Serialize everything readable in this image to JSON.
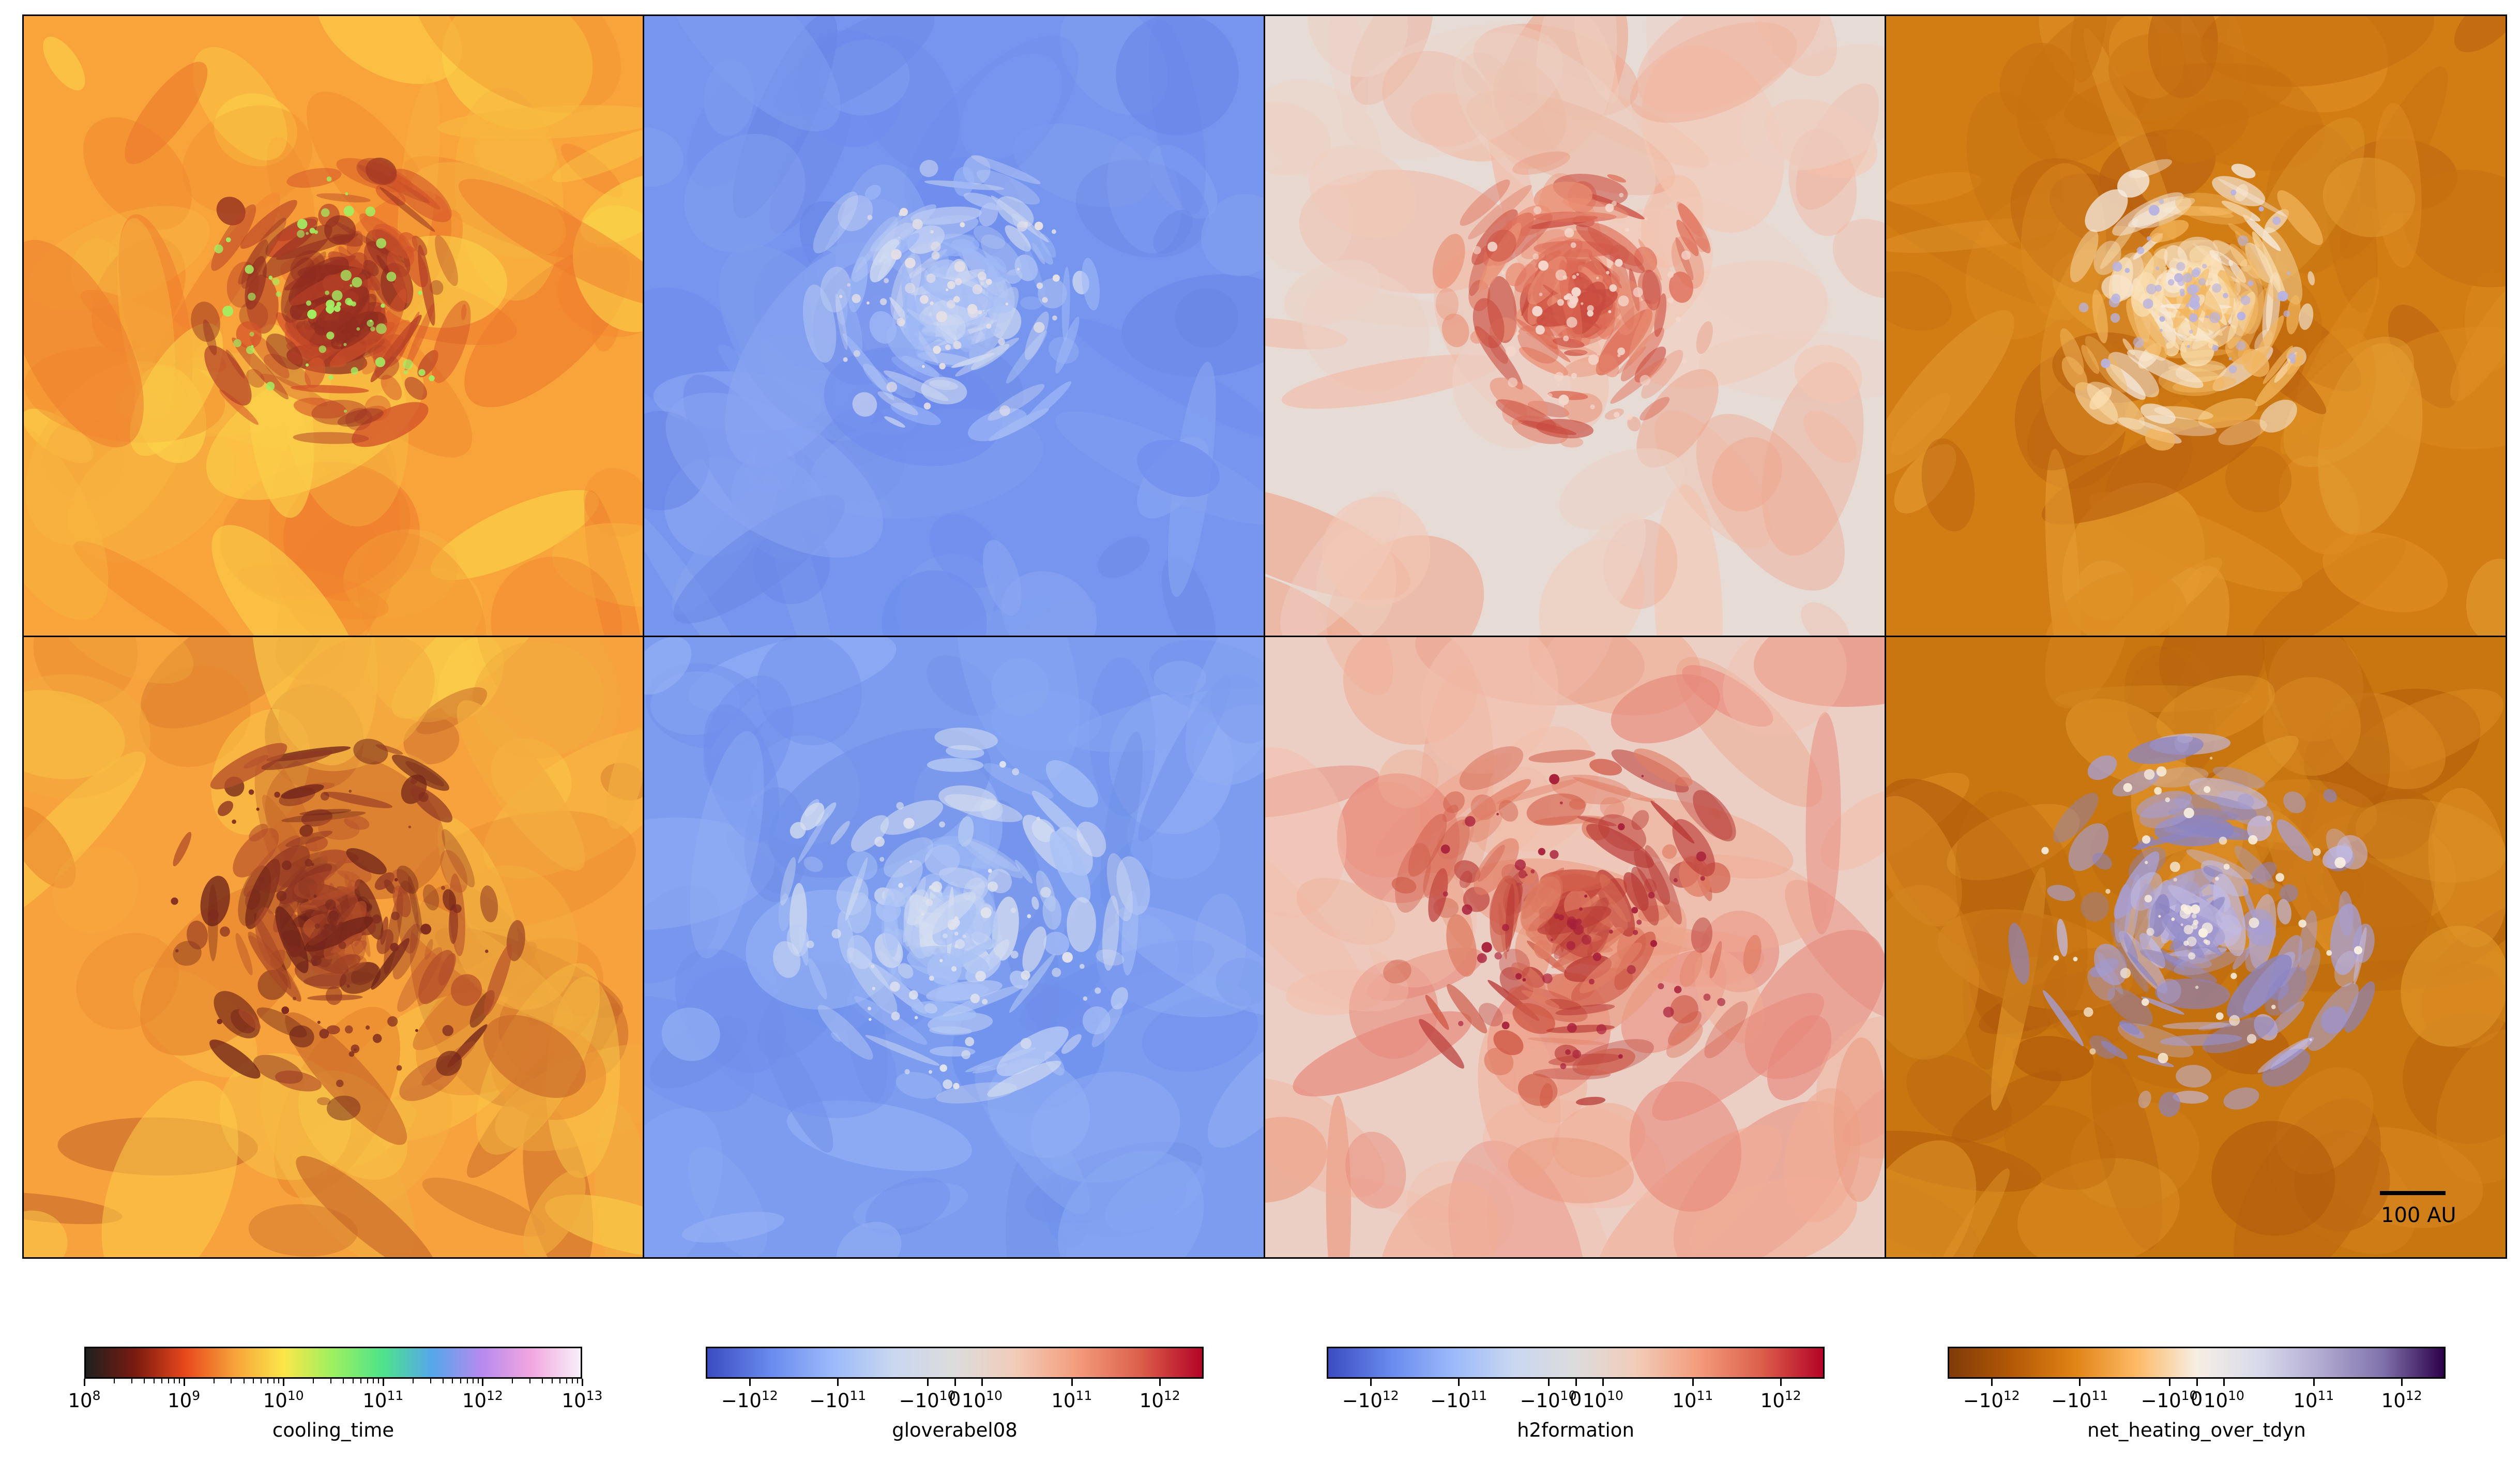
{
  "chart_data": {
    "type": "heatmap",
    "layout": {
      "rows": 2,
      "columns": 4
    },
    "panels": [
      {
        "row": 0,
        "field": "cooling_time",
        "cmap": "cooling"
      },
      {
        "row": 0,
        "field": "gloverabel08",
        "cmap": "coolwarm"
      },
      {
        "row": 0,
        "field": "h2formation",
        "cmap": "coolwarm"
      },
      {
        "row": 0,
        "field": "net_heating_over_tdyn",
        "cmap": "puor"
      },
      {
        "row": 1,
        "field": "cooling_time",
        "cmap": "cooling"
      },
      {
        "row": 1,
        "field": "gloverabel08",
        "cmap": "coolwarm"
      },
      {
        "row": 1,
        "field": "h2formation",
        "cmap": "coolwarm"
      },
      {
        "row": 1,
        "field": "net_heating_over_tdyn",
        "cmap": "puor"
      }
    ],
    "scale_bar": {
      "label": "100 AU"
    },
    "colorbars": [
      {
        "name": "cooling_time",
        "scale": "log",
        "range": [
          8,
          13
        ],
        "ticks": [
          {
            "b": "10",
            "e": "8"
          },
          {
            "b": "10",
            "e": "9"
          },
          {
            "b": "10",
            "e": "10"
          },
          {
            "b": "10",
            "e": "11"
          },
          {
            "b": "10",
            "e": "12"
          },
          {
            "b": "10",
            "e": "13"
          }
        ],
        "colors": [
          "#202020",
          "#7a1a10",
          "#e8471c",
          "#f7a23a",
          "#fbe64a",
          "#9cf060",
          "#4ee38a",
          "#55a6ec",
          "#b78aee",
          "#f2a6df",
          "#f7f0f8"
        ]
      },
      {
        "name": "gloverabel08",
        "scale": "symlog",
        "ticks": [
          {
            "b": "−10",
            "e": "12"
          },
          {
            "b": "−10",
            "e": "11"
          },
          {
            "b": "−10",
            "e": "10"
          },
          {
            "b": "0",
            "e": ""
          },
          {
            "b": "10",
            "e": "10"
          },
          {
            "b": "10",
            "e": "11"
          },
          {
            "b": "10",
            "e": "12"
          }
        ],
        "colors": [
          "#3b4cc0",
          "#6889ee",
          "#9ab9fa",
          "#c9d7f0",
          "#dddcdc",
          "#f2cbb7",
          "#f39b7b",
          "#dc5f4b",
          "#b40426"
        ]
      },
      {
        "name": "h2formation",
        "scale": "symlog",
        "ticks": [
          {
            "b": "−10",
            "e": "12"
          },
          {
            "b": "−10",
            "e": "11"
          },
          {
            "b": "−10",
            "e": "10"
          },
          {
            "b": "0",
            "e": ""
          },
          {
            "b": "10",
            "e": "10"
          },
          {
            "b": "10",
            "e": "11"
          },
          {
            "b": "10",
            "e": "12"
          }
        ],
        "colors": [
          "#3b4cc0",
          "#6889ee",
          "#9ab9fa",
          "#c9d7f0",
          "#dddcdc",
          "#f2cbb7",
          "#f39b7b",
          "#dc5f4b",
          "#b40426"
        ]
      },
      {
        "name": "net_heating_over_tdyn",
        "scale": "symlog",
        "ticks": [
          {
            "b": "−10",
            "e": "12"
          },
          {
            "b": "−10",
            "e": "11"
          },
          {
            "b": "−10",
            "e": "10"
          },
          {
            "b": "0",
            "e": ""
          },
          {
            "b": "10",
            "e": "10"
          },
          {
            "b": "10",
            "e": "11"
          },
          {
            "b": "10",
            "e": "12"
          }
        ],
        "colors": [
          "#7f3b08",
          "#b35806",
          "#e08214",
          "#fdb863",
          "#f7eee4",
          "#d8daeb",
          "#b2abd2",
          "#8073ac",
          "#2d004b"
        ]
      }
    ]
  }
}
